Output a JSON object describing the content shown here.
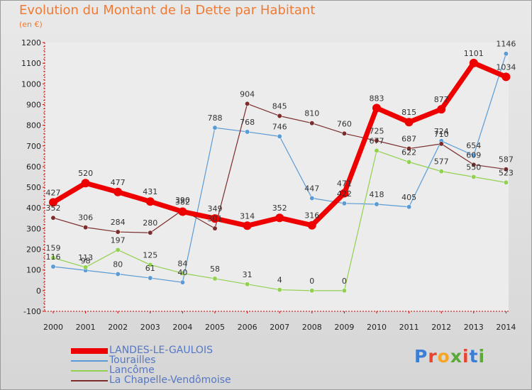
{
  "title": "Evolution du Montant de la Dette par Habitant",
  "subtitle": "(en €)",
  "logo": "Proxiti",
  "chart_data": {
    "type": "line",
    "title": "Evolution du Montant de la Dette par Habitant",
    "ylabel": "(en €)",
    "x": [
      "2000",
      "2001",
      "2002",
      "2003",
      "2004",
      "2005",
      "2006",
      "2007",
      "2008",
      "2009",
      "2010",
      "2011",
      "2012",
      "2013",
      "2014"
    ],
    "ylim": [
      -100,
      1200
    ],
    "yticks": [
      -100,
      0,
      100,
      200,
      300,
      400,
      500,
      600,
      700,
      800,
      900,
      1000,
      1100,
      1200
    ],
    "grid": false,
    "legend_position": "bottom-left",
    "series": [
      {
        "name": "LANDES-LE-GAULOIS",
        "color": "#ee0000",
        "width": 7,
        "marker": 6,
        "values": [
          427,
          520,
          477,
          431,
          382,
          349,
          314,
          352,
          316,
          471,
          883,
          815,
          877,
          1101,
          1034
        ]
      },
      {
        "name": "Tourailles",
        "color": "#5b9bd5",
        "width": 1.2,
        "marker": 3.2,
        "values": [
          116,
          98,
          80,
          61,
          40,
          788,
          768,
          746,
          447,
          422,
          418,
          405,
          724,
          654,
          1146
        ]
      },
      {
        "name": "Lancôme",
        "color": "#92d050",
        "width": 1.2,
        "marker": 3.2,
        "values": [
          159,
          113,
          197,
          125,
          84,
          58,
          31,
          4,
          0,
          0,
          677,
          622,
          577,
          550,
          523
        ]
      },
      {
        "name": "La Chapelle-Vendômoise",
        "color": "#7b2c2c",
        "width": 1.2,
        "marker": 3.2,
        "values": [
          352,
          306,
          284,
          280,
          390,
          301,
          904,
          845,
          810,
          760,
          725,
          687,
          710,
          609,
          587
        ]
      }
    ]
  }
}
